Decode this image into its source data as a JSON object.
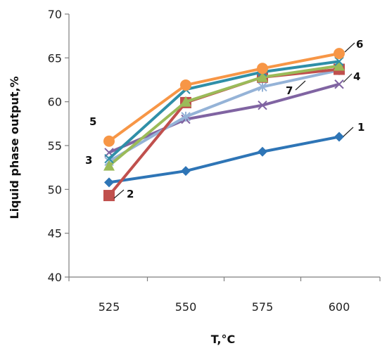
{
  "chart_data": {
    "type": "line",
    "xlabel": "T,°C",
    "ylabel": "Liquid phase output,%",
    "categories": [
      "525",
      "550",
      "575",
      "600"
    ],
    "x": [
      525,
      550,
      575,
      600
    ],
    "ylim": [
      40,
      70
    ],
    "yticks": [
      40,
      45,
      50,
      55,
      60,
      65,
      70
    ],
    "grid": false,
    "legend": "none",
    "series": [
      {
        "name": "1",
        "values": [
          50.8,
          52.1,
          54.3,
          56.0
        ],
        "color": "#2e75b6",
        "marker": "diamond"
      },
      {
        "name": "2",
        "values": [
          49.3,
          59.9,
          62.8,
          63.7
        ],
        "color": "#c0504d",
        "marker": "square"
      },
      {
        "name": "3",
        "values": [
          52.7,
          60.0,
          62.8,
          64.1
        ],
        "color": "#9bbb59",
        "marker": "triangle"
      },
      {
        "name": "4",
        "values": [
          53.5,
          61.4,
          63.4,
          64.6
        ],
        "color": "#2f8fa8",
        "marker": "x"
      },
      {
        "name": "5",
        "values": [
          54.2,
          58.0,
          59.6,
          62.0
        ],
        "color": "#8064a2",
        "marker": "x"
      },
      {
        "name": "6",
        "values": [
          55.5,
          61.9,
          63.8,
          65.5
        ],
        "color": "#f79646",
        "marker": "circle"
      },
      {
        "name": "7",
        "values": [
          53.2,
          58.3,
          61.7,
          63.6
        ],
        "color": "#95b3d7",
        "marker": "star"
      }
    ]
  }
}
